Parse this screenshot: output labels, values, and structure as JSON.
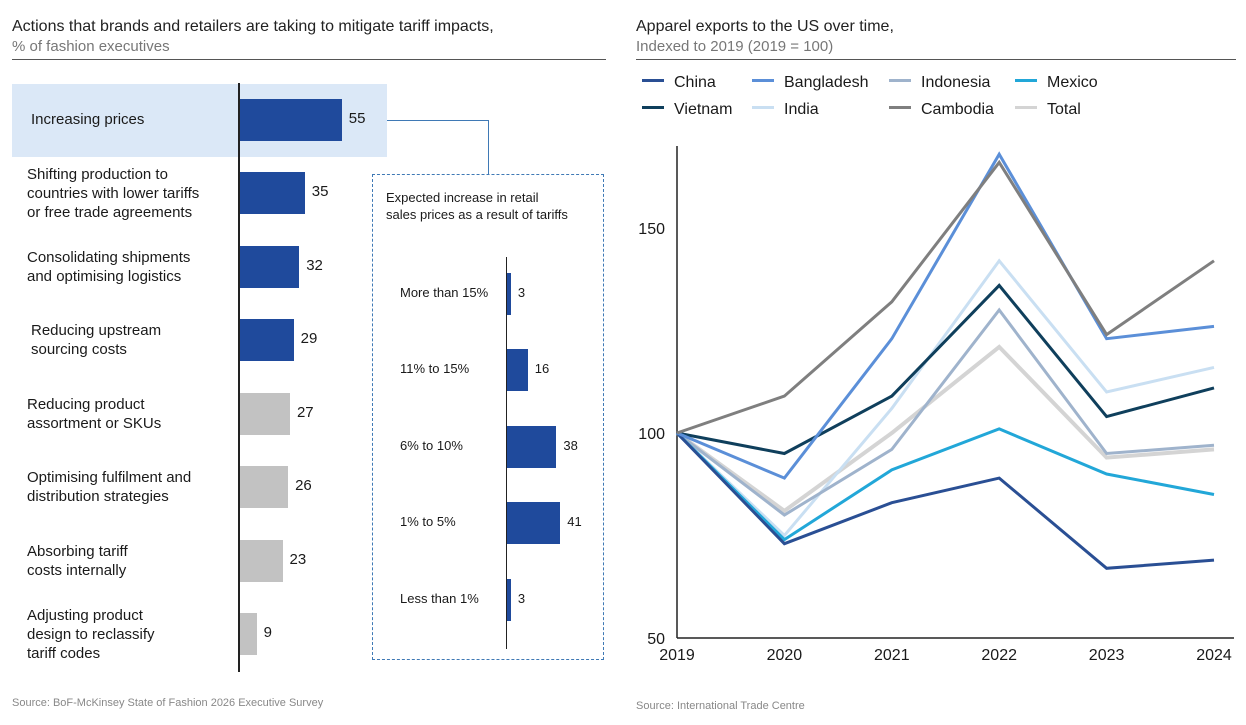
{
  "colors": {
    "highlight_bg": "#dbe8f7",
    "bar_primary": "#1f4a9c",
    "bar_secondary": "#c2c2c2",
    "connector": "#3f79b5"
  },
  "left_panel": {
    "title": "Actions that brands and retailers are taking to mitigate tariff impacts,",
    "subtitle": "% of fashion executives",
    "source": "Source: BoF-McKinsey State of Fashion 2026 Executive Survey"
  },
  "right_panel": {
    "title": "Apparel exports to the US over time,",
    "subtitle": "Indexed to 2019 (2019 = 100)",
    "source": "Source: International Trade Centre"
  },
  "chart_data": [
    {
      "type": "bar",
      "orientation": "horizontal",
      "title": "Actions that brands and retailers are taking to mitigate tariff impacts",
      "unit": "% of fashion executives",
      "categories": [
        "Increasing prices",
        "Shifting production to countries with lower tariffs or free trade agreements",
        "Consolidating shipments and optimising logistics",
        "Reducing upstream sourcing costs",
        "Reducing product assortment or SKUs",
        "Optimising fulfilment and distribution strategies",
        "Absorbing tariff costs internally",
        "Adjusting product design to reclassify tariff codes"
      ],
      "label_lines": [
        [
          "Increasing prices"
        ],
        [
          "Shifting production to",
          "countries with lower tariffs",
          "or free trade agreements"
        ],
        [
          "Consolidating shipments",
          "and optimising logistics"
        ],
        [
          "Reducing upstream",
          "sourcing costs"
        ],
        [
          "Reducing product",
          "assortment or SKUs"
        ],
        [
          "Optimising fulfilment and",
          "distribution strategies"
        ],
        [
          "Absorbing tariff",
          "costs internally"
        ],
        [
          "Adjusting product",
          "design to reclassify",
          "tariff codes"
        ]
      ],
      "values": [
        55,
        35,
        32,
        29,
        27,
        26,
        23,
        9
      ],
      "highlight": [
        true,
        false,
        false,
        false,
        false,
        false,
        false,
        false
      ],
      "emphasis": [
        "primary",
        "primary",
        "primary",
        "primary",
        "secondary",
        "secondary",
        "secondary",
        "secondary"
      ]
    },
    {
      "type": "bar",
      "orientation": "horizontal",
      "title": "Expected increase in retail sales prices as a result of tariffs",
      "title_lines": [
        "Expected increase in retail",
        "sales prices as a result of tariffs"
      ],
      "categories": [
        "More than 15%",
        "11% to 15%",
        "6% to 10%",
        "1% to 5%",
        "Less than 1%"
      ],
      "values": [
        3,
        16,
        38,
        41,
        3
      ]
    },
    {
      "type": "line",
      "title": "Apparel exports to the US over time",
      "ylabel": "Indexed to 2019 (2019 = 100)",
      "x": [
        "2019",
        "2020",
        "2021",
        "2022",
        "2023",
        "2024"
      ],
      "ylim": [
        50,
        170
      ],
      "yticks": [
        50,
        100,
        150
      ],
      "series": [
        {
          "name": "China",
          "color": "#2a4f94",
          "values": [
            100,
            73,
            83,
            89,
            67,
            69
          ]
        },
        {
          "name": "Bangladesh",
          "color": "#5b8fd8",
          "values": [
            100,
            89,
            123,
            168,
            123,
            126
          ]
        },
        {
          "name": "Indonesia",
          "color": "#9fb3cc",
          "values": [
            100,
            80,
            96,
            130,
            95,
            97
          ]
        },
        {
          "name": "Mexico",
          "color": "#22a7d8",
          "values": [
            100,
            74,
            91,
            101,
            90,
            85
          ]
        },
        {
          "name": "Vietnam",
          "color": "#0f3f5c",
          "values": [
            100,
            95,
            109,
            136,
            104,
            111
          ]
        },
        {
          "name": "India",
          "color": "#c9dff2",
          "values": [
            100,
            75,
            106,
            142,
            110,
            116
          ]
        },
        {
          "name": "Cambodia",
          "color": "#7f7f7f",
          "values": [
            100,
            109,
            132,
            166,
            124,
            142
          ]
        },
        {
          "name": "Total",
          "color": "#d4d4d4",
          "values": [
            100,
            81,
            100,
            121,
            94,
            96
          ]
        }
      ],
      "legend_rows": [
        [
          "China",
          "Bangladesh",
          "Indonesia",
          "Mexico"
        ],
        [
          "Vietnam",
          "India",
          "Cambodia",
          "Total"
        ]
      ]
    }
  ]
}
